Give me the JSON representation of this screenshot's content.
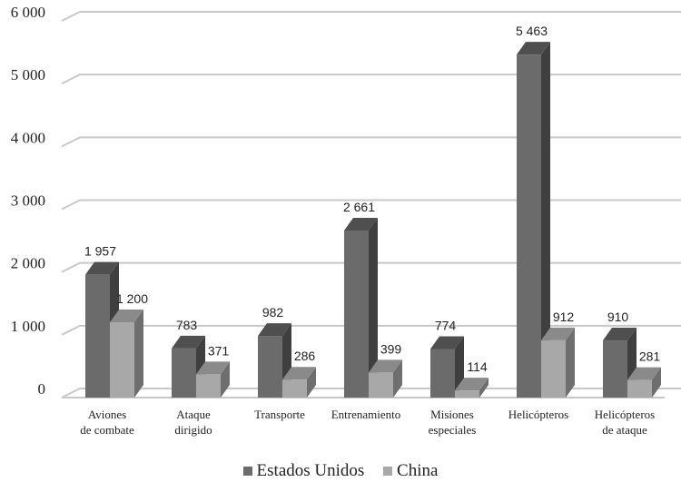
{
  "chart_data": {
    "type": "bar",
    "categories": [
      [
        "Aviones",
        "de combate"
      ],
      [
        "Ataque",
        "dirigido"
      ],
      [
        "Transporte"
      ],
      [
        "Entrenamiento"
      ],
      [
        "Misiones",
        "especiales"
      ],
      [
        "Helicópteros"
      ],
      [
        "Helicópteros",
        "de ataque"
      ]
    ],
    "series": [
      {
        "name": "Estados Unidos",
        "values": [
          1957,
          783,
          982,
          2661,
          774,
          5463,
          910
        ],
        "labels": [
          "1 957",
          "783",
          "982",
          "2 661",
          "774",
          "5 463",
          "910"
        ]
      },
      {
        "name": "China",
        "values": [
          1200,
          371,
          286,
          399,
          114,
          912,
          281
        ],
        "labels": [
          "1 200",
          "371",
          "286",
          "399",
          "114",
          "912",
          "281"
        ]
      }
    ],
    "ylim": [
      0,
      6000
    ],
    "yticks": [
      0,
      1000,
      2000,
      3000,
      4000,
      5000,
      6000
    ],
    "ytick_labels": [
      "0",
      "1 000",
      "2 000",
      "3 000",
      "4 000",
      "5 000",
      "6 000"
    ],
    "grid": true,
    "legend_position": "bottom",
    "colors": {
      "series_front": [
        "#6b6b6b",
        "#a8a8a8"
      ],
      "series_side": [
        "#3f3f3f",
        "#6e6e6e"
      ],
      "series_top": [
        "#4f4f4f",
        "#8a8a8a"
      ],
      "grid": "#c8c8c8"
    }
  }
}
